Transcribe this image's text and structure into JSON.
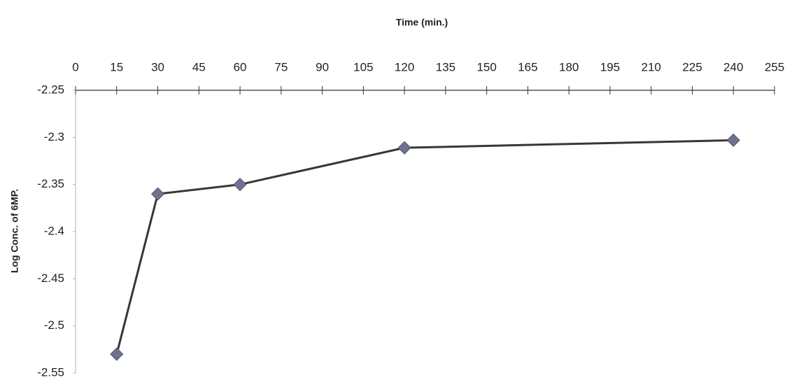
{
  "chart_data": {
    "type": "line",
    "x_label": "Time (min.)",
    "y_label": "Log Conc. of 6MP.",
    "x": [
      15,
      30,
      60,
      120,
      240
    ],
    "values": [
      -2.53,
      -2.36,
      -2.35,
      -2.311,
      -2.303
    ],
    "color": "#3b3636",
    "marker_color": "#6e7290",
    "marker": "diamond",
    "xlim": [
      0,
      255
    ],
    "xticks": [
      0,
      15,
      30,
      45,
      60,
      75,
      90,
      105,
      120,
      135,
      150,
      165,
      180,
      195,
      210,
      225,
      240,
      255
    ],
    "ylim": [
      -2.55,
      -2.25
    ],
    "yticks": [
      -2.25,
      -2.3,
      -2.35,
      -2.4,
      -2.45,
      -2.5,
      -2.55
    ],
    "x_axis_position": "top",
    "grid": false
  }
}
